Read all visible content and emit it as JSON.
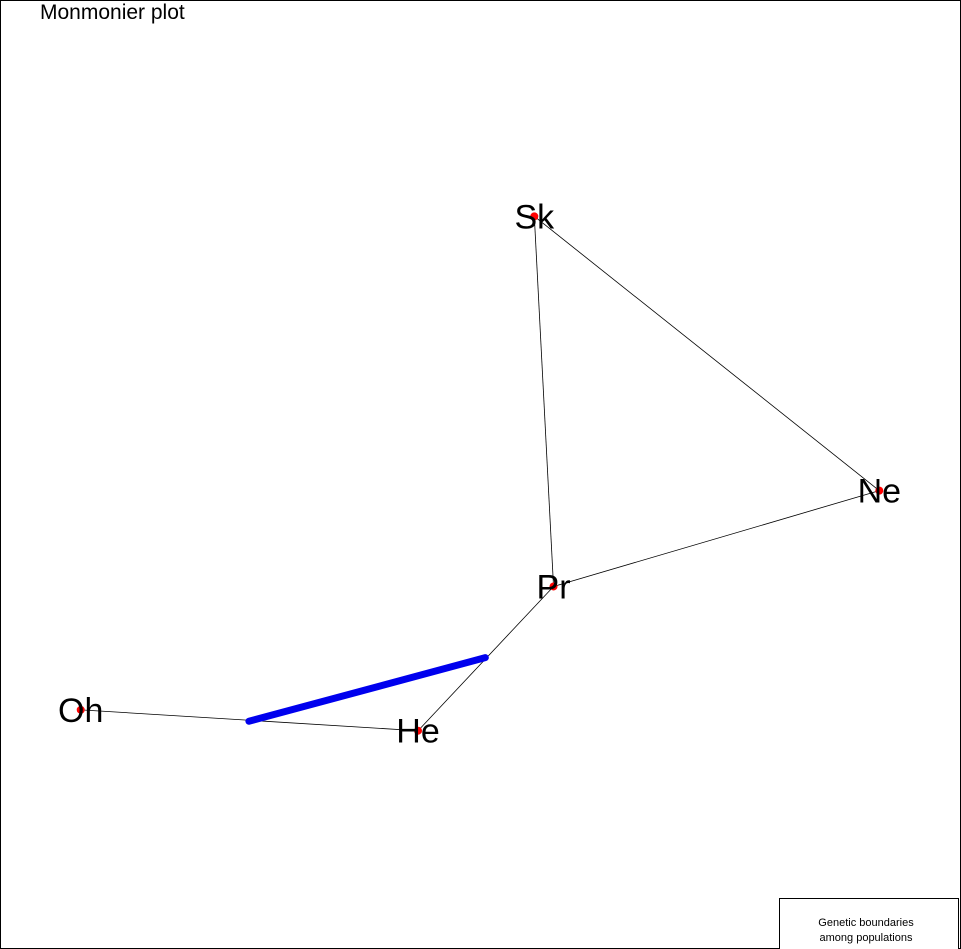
{
  "chart_data": {
    "type": "scatter",
    "title": "Monmonier plot",
    "xlabel": "",
    "ylabel": "",
    "xlim": [
      0,
      100
    ],
    "ylim": [
      0,
      100
    ],
    "axes_visible": false,
    "points": [
      {
        "id": "Sk",
        "label": "Sk",
        "x": 55.6,
        "y": 77.2
      },
      {
        "id": "Ne",
        "label": "Ne",
        "x": 91.5,
        "y": 48.3
      },
      {
        "id": "Pr",
        "label": "Pr",
        "x": 57.6,
        "y": 38.2
      },
      {
        "id": "Oh",
        "label": "Oh",
        "x": 8.4,
        "y": 25.2
      },
      {
        "id": "He",
        "label": "He",
        "x": 43.5,
        "y": 23.0
      }
    ],
    "edges": [
      [
        "Sk",
        "Ne"
      ],
      [
        "Sk",
        "Pr"
      ],
      [
        "Ne",
        "Pr"
      ],
      [
        "Pr",
        "He"
      ],
      [
        "Oh",
        "He"
      ]
    ],
    "boundary": {
      "name": "Genetic boundaries among populations",
      "color": "#0000ee",
      "points": [
        {
          "x": 50.5,
          "y": 30.7
        },
        {
          "x": 25.9,
          "y": 24.0
        }
      ]
    },
    "point_color": "#ff0000",
    "edge_color": "#000000",
    "legend": {
      "position": "bottom-right",
      "lines": [
        "Genetic boundaries",
        "among populations"
      ]
    }
  }
}
